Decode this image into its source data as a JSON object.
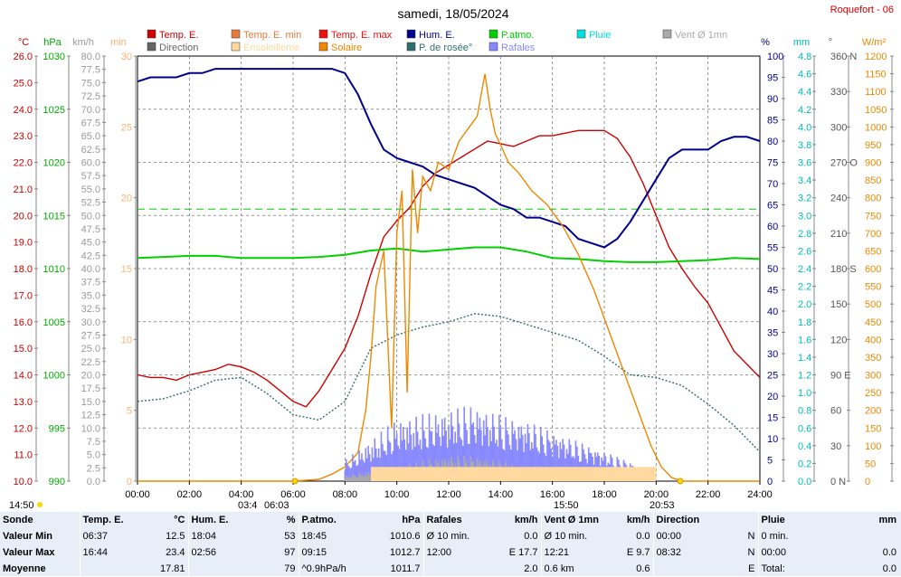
{
  "title": "samedi, 18/05/2024",
  "station": "Roquefort - 06",
  "legend": [
    {
      "label": "Temp. E.",
      "color": "#cc0000"
    },
    {
      "label": "Temp. E. min",
      "color": "#e87a3c"
    },
    {
      "label": "Temp. E. max",
      "color": "#ee1111"
    },
    {
      "label": "Hum. E.",
      "color": "#00008b"
    },
    {
      "label": "P.atmo.",
      "color": "#00d000"
    },
    {
      "label": "Pluie",
      "color": "#00e0e0"
    },
    {
      "label": "Vent Ø 1mn",
      "color": "#aaaaaa"
    },
    {
      "label": "Direction",
      "color": "#666666"
    },
    {
      "label": "Ensoleilleme",
      "color": "#ffd9a0"
    },
    {
      "label": "Solaire",
      "color": "#ee8800"
    },
    {
      "label": "P. de rosée°",
      "color": "#2f6f6f"
    },
    {
      "label": "Rafales",
      "color": "#8888ff"
    }
  ],
  "unit_labels": {
    "temp": "°C",
    "press": "hPa",
    "wind": "km/h",
    "min": "min",
    "hum": "%",
    "rain": "mm",
    "dir": "°",
    "solar": "W/m²"
  },
  "sunrise": "06:03",
  "sunset": "20:53",
  "annot": {
    "left": "14:50",
    "moon_rise": "03:4",
    "moon_set": "15:50"
  },
  "chart_data": {
    "type": "line",
    "x_ticks": [
      "00:00",
      "02:00",
      "04:00",
      "06:00",
      "08:00",
      "10:00",
      "12:00",
      "14:00",
      "16:00",
      "18:00",
      "20:00",
      "22:00",
      "24:00"
    ],
    "axes": {
      "temp": {
        "ticks": [
          "26.0",
          "25.0",
          "24.0",
          "23.0",
          "22.0",
          "21.0",
          "20.0",
          "19.0",
          "18.0",
          "17.0",
          "16.0",
          "15.0",
          "14.0",
          "13.0",
          "12.0",
          "11.0",
          "10.0"
        ],
        "range": [
          10,
          26
        ]
      },
      "press": {
        "ticks": [
          "1030",
          "1025",
          "1020",
          "1015",
          "1010",
          "1005",
          "1000",
          "995",
          "990"
        ],
        "range": [
          990,
          1030
        ]
      },
      "wind": {
        "ticks": [
          "80.0",
          "77.5",
          "75.0",
          "72.5",
          "70.0",
          "67.5",
          "65.0",
          "62.5",
          "60.0",
          "57.5",
          "55.0",
          "52.5",
          "50.0",
          "47.5",
          "45.0",
          "42.5",
          "40.0",
          "37.5",
          "35.0",
          "32.5",
          "30.0",
          "27.5",
          "25.0",
          "22.5",
          "20.0",
          "17.5",
          "15.0",
          "12.5",
          "10.0",
          "7.5",
          "5.0",
          "2.5",
          "0.0"
        ],
        "range": [
          0,
          80
        ]
      },
      "sun_min": {
        "ticks": [
          "30",
          "25",
          "20",
          "15",
          "10",
          "5",
          "0"
        ],
        "range": [
          0,
          30
        ]
      },
      "hum": {
        "ticks": [
          "100",
          "95",
          "90",
          "85",
          "80",
          "75",
          "70",
          "65",
          "60",
          "55",
          "50",
          "45",
          "40",
          "35",
          "30",
          "25",
          "20",
          "15",
          "10",
          "5",
          "0"
        ],
        "range": [
          0,
          100
        ]
      },
      "rain": {
        "ticks": [
          "4.8",
          "4.6",
          "4.4",
          "4.2",
          "4.0",
          "3.8",
          "3.6",
          "3.4",
          "3.2",
          "3.0",
          "2.8",
          "2.6",
          "2.4",
          "2.2",
          "2.0",
          "1.8",
          "1.6",
          "1.4",
          "1.2",
          "1.0",
          "0.8",
          "0.6",
          "0.4",
          "0.2",
          "0.0"
        ],
        "range": [
          0,
          5
        ]
      },
      "dir": {
        "ticks": [
          "360 N",
          "330",
          "300",
          "270 O",
          "240",
          "210",
          "180 S",
          "150",
          "120",
          "90 E",
          "60",
          "30",
          "0 N"
        ],
        "range": [
          0,
          360
        ]
      },
      "solar": {
        "ticks": [
          "1200",
          "1150",
          "1100",
          "1050",
          "1000",
          "950",
          "900",
          "850",
          "800",
          "750",
          "700",
          "650",
          "600",
          "550",
          "500",
          "450",
          "400",
          "350",
          "300",
          "250",
          "200",
          "150",
          "100",
          "50",
          "0"
        ],
        "range": [
          0,
          1200
        ]
      }
    },
    "series": [
      {
        "name": "Temp. E.",
        "axis": "temp",
        "color": "#cc0000",
        "x": [
          0,
          0.5,
          1,
          1.5,
          2,
          2.5,
          3,
          3.5,
          4,
          4.5,
          5,
          5.5,
          6,
          6.5,
          7,
          7.5,
          8,
          8.5,
          9,
          9.5,
          10,
          10.5,
          11,
          11.5,
          12,
          12.5,
          13,
          13.5,
          14,
          14.5,
          15,
          15.5,
          16,
          16.5,
          17,
          17.5,
          18,
          18.5,
          19,
          19.5,
          20,
          20.5,
          21,
          21.5,
          22,
          22.5,
          23,
          23.5,
          24
        ],
        "y": [
          14.0,
          13.9,
          13.9,
          13.8,
          14.0,
          14.1,
          14.2,
          14.4,
          14.3,
          14.1,
          13.8,
          13.4,
          13.0,
          12.8,
          13.4,
          14.2,
          15.0,
          16.2,
          17.8,
          19.2,
          19.8,
          20.3,
          21.1,
          21.6,
          21.9,
          22.2,
          22.5,
          22.8,
          22.7,
          22.6,
          22.8,
          23.0,
          23.0,
          23.1,
          23.2,
          23.2,
          23.2,
          22.9,
          22.2,
          21.2,
          20.0,
          18.8,
          18.0,
          17.3,
          16.7,
          15.8,
          14.9,
          14.4,
          13.9
        ]
      },
      {
        "name": "P. de rosée°",
        "axis": "temp",
        "color": "#2f6f6f",
        "x": [
          0,
          1,
          2,
          3,
          4,
          5,
          6,
          7,
          8,
          9,
          10,
          11,
          12,
          13,
          14,
          15,
          16,
          17,
          18,
          19,
          20,
          21,
          22,
          23,
          24
        ],
        "y": [
          13.0,
          13.1,
          13.4,
          13.8,
          13.9,
          13.3,
          12.5,
          12.3,
          13.0,
          15.0,
          15.5,
          15.8,
          16.0,
          16.3,
          16.2,
          15.9,
          15.6,
          15.3,
          14.7,
          14.0,
          13.9,
          13.6,
          12.9,
          12.1,
          11.1
        ]
      },
      {
        "name": "Hum. E.",
        "axis": "hum",
        "color": "#00008b",
        "x": [
          0,
          0.5,
          1,
          1.5,
          2,
          2.5,
          3,
          3.5,
          4,
          4.5,
          5,
          5.5,
          6,
          6.5,
          7,
          7.5,
          8,
          8.5,
          9,
          9.5,
          10,
          10.5,
          11,
          11.5,
          12,
          12.5,
          13,
          13.5,
          14,
          14.5,
          15,
          15.5,
          16,
          16.5,
          17,
          17.5,
          18,
          18.5,
          19,
          19.5,
          20,
          20.5,
          21,
          21.5,
          22,
          22.5,
          23,
          23.5,
          24
        ],
        "y": [
          94,
          95,
          95,
          95,
          96,
          96,
          97,
          97,
          97,
          97,
          97,
          97,
          97,
          97,
          97,
          97,
          96,
          91,
          84,
          78,
          76,
          75,
          74,
          72,
          71,
          70,
          69,
          67,
          65,
          64,
          62,
          62,
          61,
          60,
          57,
          56,
          55,
          57,
          61,
          66,
          71,
          76,
          78,
          78,
          78,
          80,
          81,
          81,
          80
        ]
      },
      {
        "name": "P.atmo.",
        "axis": "press",
        "color": "#00d000",
        "x": [
          0,
          1,
          2,
          3,
          4,
          5,
          6,
          7,
          8,
          9,
          10,
          11,
          12,
          13,
          14,
          15,
          16,
          17,
          18,
          19,
          20,
          21,
          22,
          23,
          24
        ],
        "y": [
          1011.0,
          1011.1,
          1011.2,
          1011.2,
          1011.0,
          1011.0,
          1011.0,
          1011.1,
          1011.3,
          1011.7,
          1011.9,
          1011.6,
          1011.8,
          1012.0,
          1012.0,
          1011.6,
          1011.0,
          1010.9,
          1010.7,
          1010.6,
          1010.6,
          1010.7,
          1010.8,
          1011.0,
          1010.9
        ]
      },
      {
        "name": "Solaire",
        "axis": "solar",
        "color": "#ee8800",
        "x": [
          0,
          6,
          7,
          7.5,
          8,
          8.5,
          8.8,
          9,
          9.2,
          9.5,
          9.8,
          10,
          10.2,
          10.4,
          10.6,
          10.8,
          11,
          11.3,
          11.6,
          12,
          12.4,
          12.8,
          13.1,
          13.4,
          13.6,
          13.8,
          14,
          14.3,
          14.7,
          15.2,
          15.8,
          16.4,
          17,
          17.6,
          18.2,
          18.8,
          19.4,
          19.8,
          20.2,
          20.6,
          21,
          24
        ],
        "y": [
          0,
          0,
          5,
          20,
          40,
          80,
          200,
          350,
          550,
          650,
          150,
          700,
          820,
          250,
          880,
          700,
          860,
          820,
          900,
          880,
          960,
          1000,
          1030,
          1150,
          1050,
          980,
          950,
          900,
          870,
          820,
          780,
          720,
          640,
          540,
          420,
          300,
          180,
          100,
          40,
          10,
          0,
          0
        ]
      },
      {
        "name": "Rafales",
        "axis": "wind",
        "color": "#8888ff",
        "x": [
          8,
          9,
          10,
          11,
          12,
          13,
          14,
          15,
          16,
          17,
          18,
          19,
          20
        ],
        "y": [
          4,
          8,
          12,
          13,
          14,
          15,
          13,
          12,
          10,
          8,
          6,
          4,
          1
        ]
      },
      {
        "name": "Vent Ø 1mn",
        "axis": "wind",
        "color": "#aaaaaa",
        "x": [
          8,
          9,
          10,
          11,
          12,
          13,
          14,
          15,
          16,
          17,
          18,
          19,
          20
        ],
        "y": [
          1,
          2,
          3,
          4,
          5,
          5,
          4,
          3,
          3,
          2,
          1,
          1,
          0
        ]
      },
      {
        "name": "Ensoleilleme",
        "axis": "sun_min",
        "color": "#ffd9a0",
        "x": [
          9,
          20
        ],
        "y": [
          1,
          1
        ]
      }
    ],
    "pressure_reference": 1015.6
  },
  "table": {
    "headers": [
      "Sonde",
      "Temp. E.",
      "°C",
      "Hum. E.",
      "%",
      "P.atmo.",
      "hPa",
      "Rafales",
      "km/h",
      "Vent Ø 1mn",
      "km/h",
      "Direction",
      "",
      "Pluie",
      "mm"
    ],
    "rows": [
      [
        "Valeur Min",
        "06:37",
        "12.5",
        "18:04",
        "53",
        "18:45",
        "1010.6",
        "Ø 10 min.",
        "0.0",
        "Ø 10 min.",
        "0.0",
        "00:00",
        "N",
        "0 min.",
        ""
      ],
      [
        "Valeur Max",
        "16:44",
        "23.4",
        "02:56",
        "97",
        "09:15",
        "1012.7",
        "12:00",
        "E 17.7",
        "12:21",
        "E 9.7",
        "08:32",
        "N",
        "00:00",
        "0.0"
      ],
      [
        "Moyenne",
        "",
        "17.81",
        "",
        "79",
        "^0.9hPa/h",
        "1011.7",
        "",
        "2.0",
        "0.6 km",
        "0.6",
        "",
        "E",
        "Total:",
        "0.0"
      ]
    ]
  }
}
